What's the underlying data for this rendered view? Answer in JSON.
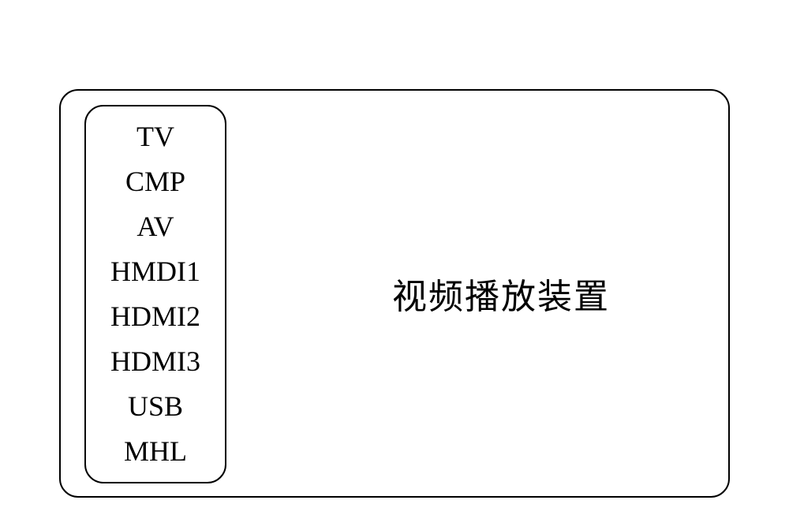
{
  "diagram": {
    "outer_border_color": "#000000",
    "outer_border_radius": 24,
    "background_color": "#ffffff",
    "list_border_color": "#000000",
    "list_border_radius": 24,
    "list_items": [
      "TV",
      "CMP",
      "AV",
      "HMDI1",
      "HDMI2",
      "HDMI3",
      "USB",
      "MHL"
    ],
    "main_label": "视频播放装置",
    "list_font_size": 36,
    "main_font_size": 44,
    "font_family": "Times New Roman"
  }
}
